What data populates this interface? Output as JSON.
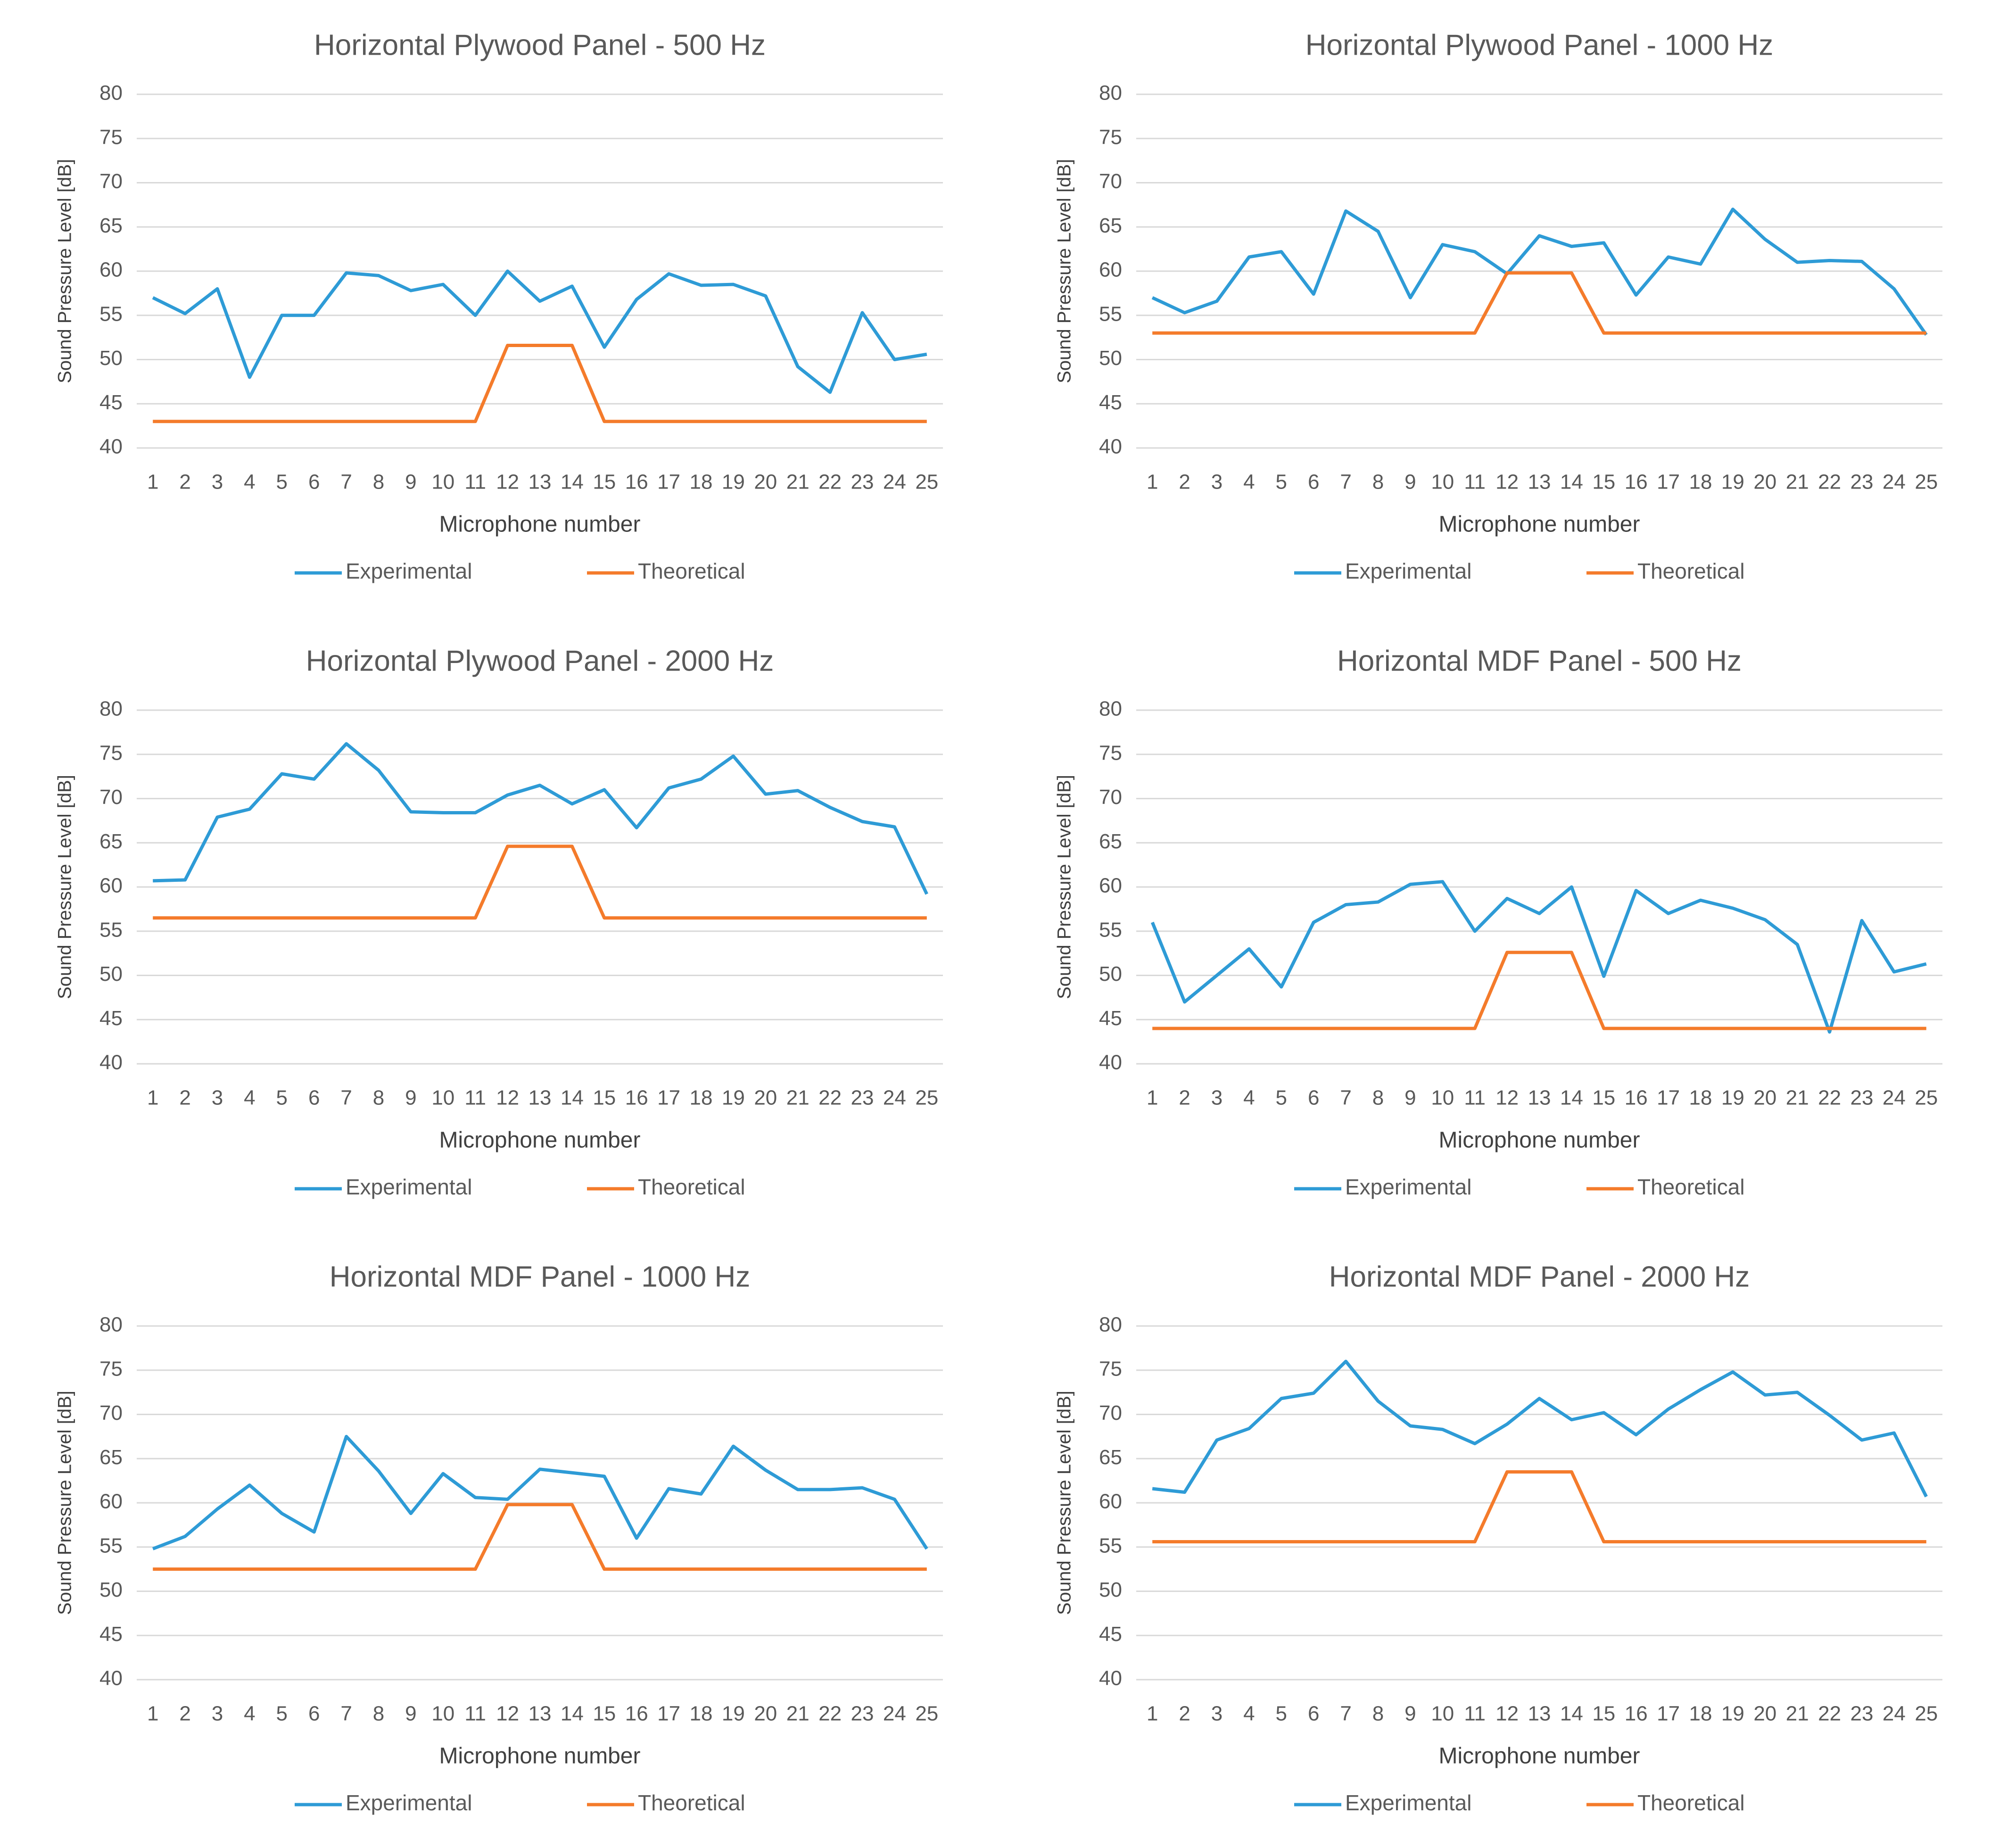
{
  "chart_data": [
    {
      "type": "line",
      "title": "Horizontal Plywood Panel - 500 Hz",
      "x_label": "Microphone number",
      "y_label": "Sound Pressure Level [dB]",
      "categories": [
        "1",
        "2",
        "3",
        "4",
        "5",
        "6",
        "7",
        "8",
        "9",
        "10",
        "11",
        "12",
        "13",
        "14",
        "15",
        "16",
        "17",
        "18",
        "19",
        "20",
        "21",
        "22",
        "23",
        "24",
        "25"
      ],
      "series": [
        {
          "name": "Experimental",
          "color": "#2e9bd6",
          "values": [
            57,
            55.2,
            58,
            48,
            55,
            55,
            59.8,
            59.5,
            57.8,
            58.5,
            55,
            60,
            56.6,
            58.3,
            51.4,
            56.8,
            59.7,
            58.4,
            58.5,
            57.2,
            49.2,
            46.3,
            55.3,
            50,
            50.6
          ]
        },
        {
          "name": "Theoretical",
          "color": "#f47b2b",
          "values": [
            43,
            43,
            43,
            43,
            43,
            43,
            43,
            43,
            43,
            43,
            43,
            51.6,
            51.6,
            51.6,
            43,
            43,
            43,
            43,
            43,
            43,
            43,
            43,
            43,
            43,
            43
          ]
        }
      ],
      "ylim": [
        40,
        80
      ],
      "yticks": [
        40,
        45,
        50,
        55,
        60,
        65,
        70,
        75,
        80
      ],
      "grid": true
    },
    {
      "type": "line",
      "title": "Horizontal Plywood Panel - 1000 Hz",
      "x_label": "Microphone number",
      "y_label": "Sound Pressure Level [dB]",
      "categories": [
        "1",
        "2",
        "3",
        "4",
        "5",
        "6",
        "7",
        "8",
        "9",
        "10",
        "11",
        "12",
        "13",
        "14",
        "15",
        "16",
        "17",
        "18",
        "19",
        "20",
        "21",
        "22",
        "23",
        "24",
        "25"
      ],
      "series": [
        {
          "name": "Experimental",
          "color": "#2e9bd6",
          "values": [
            57,
            55.3,
            56.6,
            61.6,
            62.2,
            57.4,
            66.8,
            64.5,
            57,
            63,
            62.2,
            59.7,
            64,
            62.8,
            63.2,
            57.3,
            61.6,
            60.8,
            67,
            63.6,
            61,
            61.2,
            61.1,
            58,
            52.8
          ]
        },
        {
          "name": "Theoretical",
          "color": "#f47b2b",
          "values": [
            53,
            53,
            53,
            53,
            53,
            53,
            53,
            53,
            53,
            53,
            53,
            59.8,
            59.8,
            59.8,
            53,
            53,
            53,
            53,
            53,
            53,
            53,
            53,
            53,
            53,
            53
          ]
        }
      ],
      "ylim": [
        40,
        80
      ],
      "yticks": [
        40,
        45,
        50,
        55,
        60,
        65,
        70,
        75,
        80
      ],
      "grid": true
    },
    {
      "type": "line",
      "title": "Horizontal Plywood Panel - 2000 Hz",
      "x_label": "Microphone number",
      "y_label": "Sound Pressure Level [dB]",
      "categories": [
        "1",
        "2",
        "3",
        "4",
        "5",
        "6",
        "7",
        "8",
        "9",
        "10",
        "11",
        "12",
        "13",
        "14",
        "15",
        "16",
        "17",
        "18",
        "19",
        "20",
        "21",
        "22",
        "23",
        "24",
        "25"
      ],
      "series": [
        {
          "name": "Experimental",
          "color": "#2e9bd6",
          "values": [
            60.7,
            60.8,
            67.9,
            68.8,
            72.8,
            72.2,
            76.2,
            73.2,
            68.5,
            68.4,
            68.4,
            70.4,
            71.5,
            69.4,
            71,
            66.7,
            71.2,
            72.2,
            74.8,
            70.5,
            70.9,
            69,
            67.4,
            66.8,
            59.2
          ]
        },
        {
          "name": "Theoretical",
          "color": "#f47b2b",
          "values": [
            56.5,
            56.5,
            56.5,
            56.5,
            56.5,
            56.5,
            56.5,
            56.5,
            56.5,
            56.5,
            56.5,
            64.6,
            64.6,
            64.6,
            56.5,
            56.5,
            56.5,
            56.5,
            56.5,
            56.5,
            56.5,
            56.5,
            56.5,
            56.5,
            56.5
          ]
        }
      ],
      "ylim": [
        40,
        80
      ],
      "yticks": [
        40,
        45,
        50,
        55,
        60,
        65,
        70,
        75,
        80
      ],
      "grid": true
    },
    {
      "type": "line",
      "title": "Horizontal MDF Panel - 500 Hz",
      "x_label": "Microphone number",
      "y_label": "Sound Pressure Level [dB]",
      "categories": [
        "1",
        "2",
        "3",
        "4",
        "5",
        "6",
        "7",
        "8",
        "9",
        "10",
        "11",
        "12",
        "13",
        "14",
        "15",
        "16",
        "17",
        "18",
        "19",
        "20",
        "21",
        "22",
        "23",
        "24",
        "25"
      ],
      "series": [
        {
          "name": "Experimental",
          "color": "#2e9bd6",
          "values": [
            56,
            47,
            50,
            53,
            48.7,
            56,
            58,
            58.3,
            60.3,
            60.6,
            55,
            58.7,
            57,
            60,
            49.9,
            59.6,
            57,
            58.5,
            57.6,
            56.3,
            53.5,
            43.6,
            56.2,
            50.4,
            51.3
          ]
        },
        {
          "name": "Theoretical",
          "color": "#f47b2b",
          "values": [
            44,
            44,
            44,
            44,
            44,
            44,
            44,
            44,
            44,
            44,
            44,
            52.6,
            52.6,
            52.6,
            44,
            44,
            44,
            44,
            44,
            44,
            44,
            44,
            44,
            44,
            44
          ]
        }
      ],
      "ylim": [
        40,
        80
      ],
      "yticks": [
        40,
        45,
        50,
        55,
        60,
        65,
        70,
        75,
        80
      ],
      "grid": true
    },
    {
      "type": "line",
      "title": "Horizontal MDF Panel - 1000 Hz",
      "x_label": "Microphone number",
      "y_label": "Sound Pressure Level [dB]",
      "categories": [
        "1",
        "2",
        "3",
        "4",
        "5",
        "6",
        "7",
        "8",
        "9",
        "10",
        "11",
        "12",
        "13",
        "14",
        "15",
        "16",
        "17",
        "18",
        "19",
        "20",
        "21",
        "22",
        "23",
        "24",
        "25"
      ],
      "series": [
        {
          "name": "Experimental",
          "color": "#2e9bd6",
          "values": [
            54.8,
            56.2,
            59.3,
            62,
            58.8,
            56.7,
            67.5,
            63.6,
            58.8,
            63.3,
            60.6,
            60.4,
            63.8,
            63.4,
            63,
            56,
            61.6,
            61,
            66.4,
            63.7,
            61.5,
            61.5,
            61.7,
            60.4,
            54.8
          ]
        },
        {
          "name": "Theoretical",
          "color": "#f47b2b",
          "values": [
            52.5,
            52.5,
            52.5,
            52.5,
            52.5,
            52.5,
            52.5,
            52.5,
            52.5,
            52.5,
            52.5,
            59.8,
            59.8,
            59.8,
            52.5,
            52.5,
            52.5,
            52.5,
            52.5,
            52.5,
            52.5,
            52.5,
            52.5,
            52.5,
            52.5
          ]
        }
      ],
      "ylim": [
        40,
        80
      ],
      "yticks": [
        40,
        45,
        50,
        55,
        60,
        65,
        70,
        75,
        80
      ],
      "grid": true
    },
    {
      "type": "line",
      "title": "Horizontal MDF Panel - 2000 Hz",
      "x_label": "Microphone number",
      "y_label": "Sound Pressure Level [dB]",
      "categories": [
        "1",
        "2",
        "3",
        "4",
        "5",
        "6",
        "7",
        "8",
        "9",
        "10",
        "11",
        "12",
        "13",
        "14",
        "15",
        "16",
        "17",
        "18",
        "19",
        "20",
        "21",
        "22",
        "23",
        "24",
        "25"
      ],
      "series": [
        {
          "name": "Experimental",
          "color": "#2e9bd6",
          "values": [
            61.6,
            61.2,
            67.1,
            68.4,
            71.8,
            72.4,
            76,
            71.5,
            68.7,
            68.3,
            66.7,
            68.9,
            71.8,
            69.4,
            70.2,
            67.7,
            70.6,
            72.8,
            74.8,
            72.2,
            72.5,
            69.9,
            67.1,
            67.9,
            60.7
          ]
        },
        {
          "name": "Theoretical",
          "color": "#f47b2b",
          "values": [
            55.6,
            55.6,
            55.6,
            55.6,
            55.6,
            55.6,
            55.6,
            55.6,
            55.6,
            55.6,
            55.6,
            63.5,
            63.5,
            63.5,
            55.6,
            55.6,
            55.6,
            55.6,
            55.6,
            55.6,
            55.6,
            55.6,
            55.6,
            55.6,
            55.6
          ]
        }
      ],
      "ylim": [
        40,
        80
      ],
      "yticks": [
        40,
        45,
        50,
        55,
        60,
        65,
        70,
        75,
        80
      ],
      "grid": true
    }
  ]
}
